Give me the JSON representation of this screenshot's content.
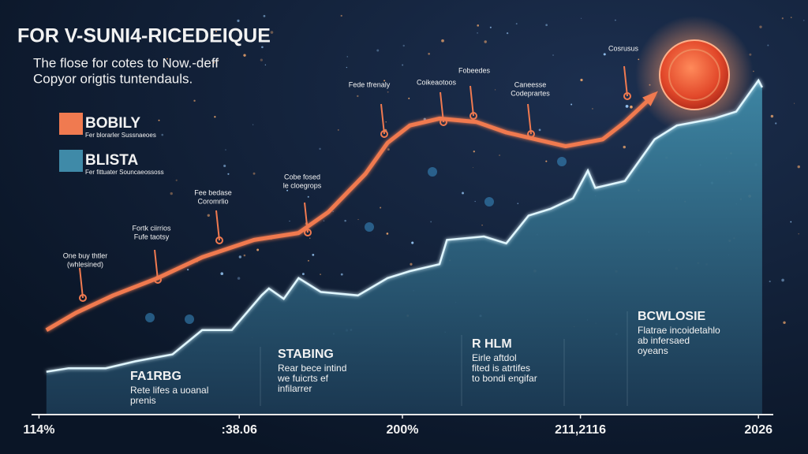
{
  "chart_data": {
    "type": "line",
    "title": "FOR V-SUNI4-RICEDEIQUE",
    "subtitle": [
      "The flose for cotes to Now.-deff",
      "Copyor origtis tuntendauls."
    ],
    "legend": [
      {
        "name": "BOBILY",
        "note": "Fer blorarler Sussnaeoes",
        "color": "#f07a50"
      },
      {
        "name": "BLISTA",
        "note": "Fer fittuater Souncaeossoss",
        "color": "#3f8aa8"
      }
    ],
    "xlim": [
      0,
      100
    ],
    "ylim": [
      0,
      100
    ],
    "xticks": [
      {
        "value": 1,
        "label": "114%"
      },
      {
        "value": 28,
        "label": ":38.06"
      },
      {
        "value": 50,
        "label": "200%"
      },
      {
        "value": 74,
        "label": "211,2116"
      },
      {
        "value": 98,
        "label": "2026"
      }
    ],
    "series": [
      {
        "name": "BLISTA",
        "color": "#3f8aa8",
        "style": "area",
        "x": [
          2,
          5,
          10,
          14,
          19,
          23,
          27,
          31,
          32,
          34,
          36,
          39,
          44,
          48,
          51,
          55,
          56,
          61,
          64,
          67,
          70,
          73,
          75,
          76,
          80,
          84,
          87,
          92,
          95,
          98,
          98.5
        ],
        "values": [
          11,
          12,
          12,
          14,
          16,
          23,
          23,
          33,
          35,
          32,
          38,
          34,
          33,
          38,
          40,
          42,
          49,
          50,
          48,
          56,
          58,
          61,
          69,
          64,
          66,
          78,
          82,
          84,
          86,
          95,
          93
        ]
      },
      {
        "name": "BOBILY",
        "color": "#f07a50",
        "style": "line",
        "x": [
          2,
          6,
          11,
          17,
          23,
          30,
          36,
          40,
          45,
          48,
          51,
          55,
          60,
          64,
          68,
          72,
          77,
          80,
          84
        ],
        "values": [
          23,
          28,
          33,
          38,
          44,
          49,
          51,
          57,
          68,
          77,
          82,
          84,
          83,
          80,
          78,
          76,
          78,
          83,
          91
        ]
      }
    ],
    "pins": [
      {
        "lines": [
          "One buy thtler",
          "(whlesined)"
        ]
      },
      {
        "lines": [
          "Fortk ciirrios",
          "Fufe taotsy"
        ]
      },
      {
        "lines": [
          "Fee bedase",
          "Coromrlio"
        ]
      },
      {
        "lines": [
          "Cobe fosed",
          "le cloegrops"
        ]
      },
      {
        "lines": [
          "Fede tfrenaly"
        ]
      },
      {
        "lines": [
          "Coikeaotoos"
        ]
      },
      {
        "lines": [
          "Fobeedes"
        ]
      },
      {
        "lines": [
          "Caneesse",
          "Codeprartes"
        ]
      },
      {
        "lines": [
          "Cosrusus"
        ]
      }
    ],
    "phases": [
      {
        "title": "FA1RBG",
        "lines": [
          "Rete lifes a uoanal",
          "prenis"
        ]
      },
      {
        "title": "STABING",
        "lines": [
          "Rear bece intind",
          "we fuicrts ef",
          "infilarrer"
        ]
      },
      {
        "title": "R HLM",
        "lines": [
          "Eirle aftdol",
          "fited is atrtifes",
          "to bondi engifar"
        ]
      },
      {
        "title": "BCWLOSIE",
        "lines": [
          "Flatrae incoidetahlo",
          "ab infersaed",
          "oyeans"
        ]
      }
    ]
  }
}
